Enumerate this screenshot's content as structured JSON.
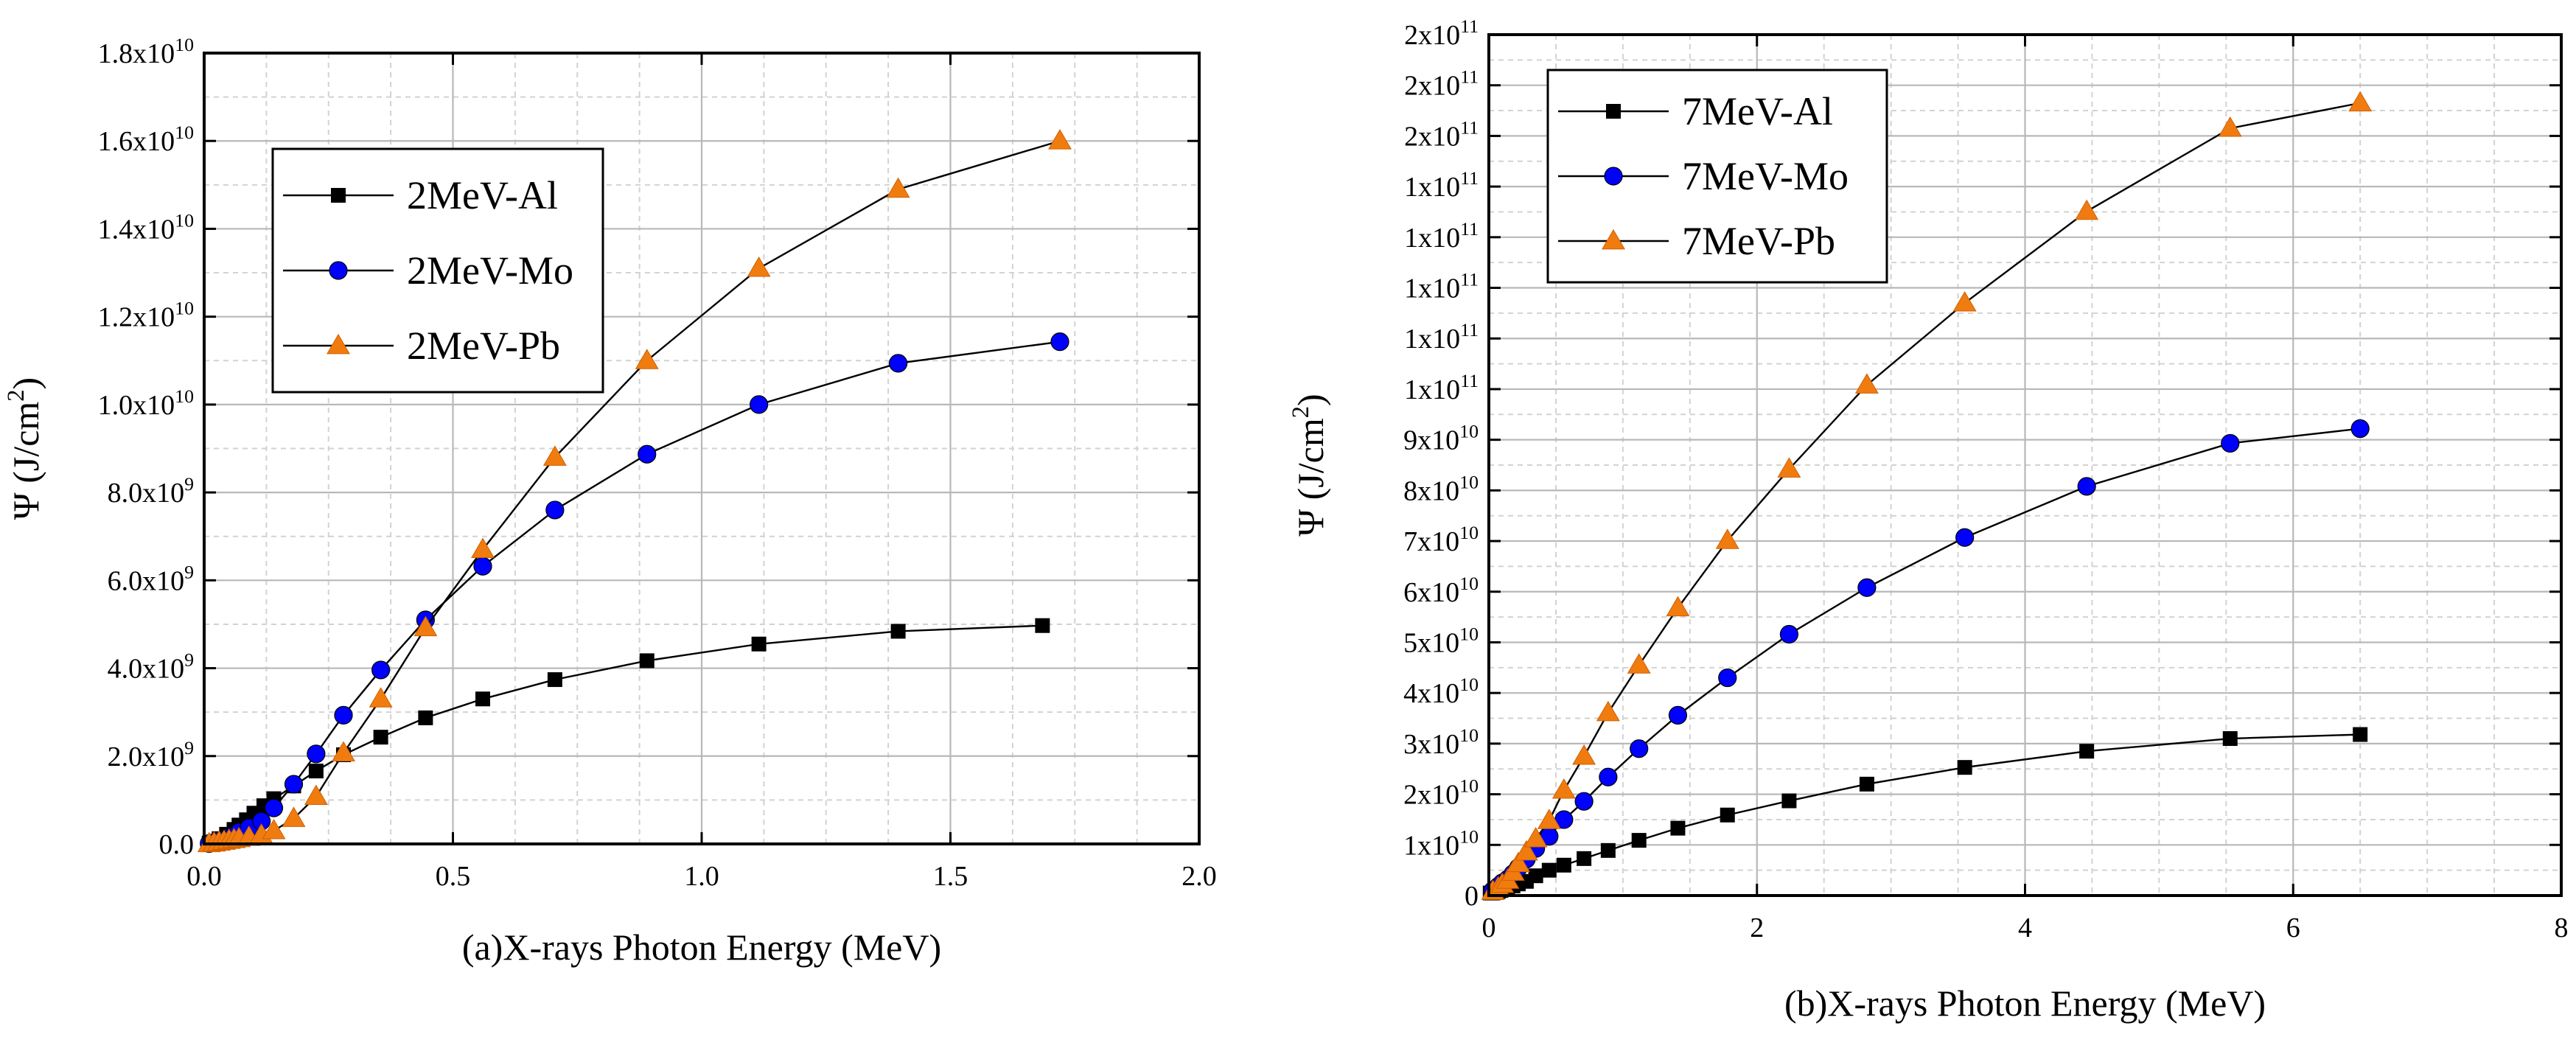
{
  "chart_data": [
    {
      "type": "line",
      "xlabel": "(a)X-rays Photon Energy (MeV)",
      "ylabel_symbol": "Ψ",
      "ylabel_text": " (J/cm",
      "ylabel_sup": "2",
      "ylabel_close": ")",
      "xlim": [
        0,
        2.0
      ],
      "ylim": [
        0,
        18000000000.0
      ],
      "x_ticks": [
        {
          "value": 0.0,
          "label": "0.0"
        },
        {
          "value": 0.5,
          "label": "0.5"
        },
        {
          "value": 1.0,
          "label": "1.0"
        },
        {
          "value": 1.5,
          "label": "1.5"
        },
        {
          "value": 2.0,
          "label": "2.0"
        }
      ],
      "y_ticks": [
        {
          "value": 0,
          "label": "0.0",
          "exp": ""
        },
        {
          "value": 2000000000.0,
          "label": "2.0x10",
          "exp": "9"
        },
        {
          "value": 4000000000.0,
          "label": "4.0x10",
          "exp": "9"
        },
        {
          "value": 6000000000.0,
          "label": "6.0x10",
          "exp": "9"
        },
        {
          "value": 8000000000.0,
          "label": "8.0x10",
          "exp": "9"
        },
        {
          "value": 10000000000.0,
          "label": "1.0x10",
          "exp": "10"
        },
        {
          "value": 12000000000.0,
          "label": "1.2x10",
          "exp": "10"
        },
        {
          "value": 14000000000.0,
          "label": "1.4x10",
          "exp": "10"
        },
        {
          "value": 16000000000.0,
          "label": "1.6x10",
          "exp": "10"
        },
        {
          "value": 18000000000.0,
          "label": "1.8x10",
          "exp": "10"
        }
      ],
      "legend_position": "upper-left",
      "grid": true,
      "series": [
        {
          "name": "2MeV-Al",
          "marker": "square",
          "color": "#000000",
          "x": [
            0.01,
            0.02,
            0.03,
            0.045,
            0.06,
            0.07,
            0.085,
            0.1,
            0.12,
            0.14,
            0.18,
            0.225,
            0.28,
            0.355,
            0.445,
            0.56,
            0.705,
            0.89,
            1.115,
            1.395,
            1.685
          ],
          "y": [
            20000000.0,
            50000000.0,
            120000000.0,
            220000000.0,
            330000000.0,
            430000000.0,
            550000000.0,
            700000000.0,
            870000000.0,
            1030000000.0,
            1320000000.0,
            1660000000.0,
            2030000000.0,
            2430000000.0,
            2870000000.0,
            3300000000.0,
            3740000000.0,
            4170000000.0,
            4550000000.0,
            4840000000.0,
            4970000000.0
          ]
        },
        {
          "name": "2MeV-Mo",
          "marker": "circle",
          "color": "#0000ff",
          "x": [
            0.01,
            0.02,
            0.03,
            0.04,
            0.05,
            0.06,
            0.07,
            0.09,
            0.115,
            0.14,
            0.18,
            0.225,
            0.28,
            0.355,
            0.445,
            0.56,
            0.705,
            0.89,
            1.115,
            1.395,
            1.72
          ],
          "y": [
            10000000.0,
            30000000.0,
            60000000.0,
            100000000.0,
            150000000.0,
            200000000.0,
            270000000.0,
            370000000.0,
            520000000.0,
            820000000.0,
            1360000000.0,
            2050000000.0,
            2930000000.0,
            3960000000.0,
            5100000000.0,
            6320000000.0,
            7600000000.0,
            8870000000.0,
            10000000000.0,
            10940000000.0,
            11430000000.0
          ]
        },
        {
          "name": "2MeV-Pb",
          "marker": "triangle",
          "color": "#f07c10",
          "x": [
            0.01,
            0.02,
            0.03,
            0.04,
            0.05,
            0.06,
            0.07,
            0.09,
            0.115,
            0.14,
            0.18,
            0.225,
            0.28,
            0.355,
            0.445,
            0.56,
            0.705,
            0.89,
            1.115,
            1.395,
            1.72
          ],
          "y": [
            5000000.0,
            20000000.0,
            40000000.0,
            60000000.0,
            80000000.0,
            100000000.0,
            120000000.0,
            150000000.0,
            200000000.0,
            300000000.0,
            580000000.0,
            1080000000.0,
            2070000000.0,
            3300000000.0,
            4920000000.0,
            6700000000.0,
            8800000000.0,
            11000000000.0,
            13100000000.0,
            14900000000.0,
            16000000000.0
          ]
        }
      ]
    },
    {
      "type": "line",
      "xlabel": "(b)X-rays Photon Energy (MeV)",
      "ylabel_symbol": "Ψ",
      "ylabel_text": " (J/cm",
      "ylabel_sup": "2",
      "ylabel_close": ")",
      "xlim": [
        0,
        8
      ],
      "ylim": [
        0,
        170000000000.0
      ],
      "x_ticks": [
        {
          "value": 0,
          "label": "0"
        },
        {
          "value": 2,
          "label": "2"
        },
        {
          "value": 4,
          "label": "4"
        },
        {
          "value": 6,
          "label": "6"
        },
        {
          "value": 8,
          "label": "8"
        }
      ],
      "y_ticks": [
        {
          "value": 0,
          "label": "0",
          "exp": ""
        },
        {
          "value": 10000000000.0,
          "label": "1x10",
          "exp": "10"
        },
        {
          "value": 20000000000.0,
          "label": "2x10",
          "exp": "10"
        },
        {
          "value": 30000000000.0,
          "label": "3x10",
          "exp": "10"
        },
        {
          "value": 40000000000.0,
          "label": "4x10",
          "exp": "10"
        },
        {
          "value": 50000000000.0,
          "label": "5x10",
          "exp": "10"
        },
        {
          "value": 60000000000.0,
          "label": "6x10",
          "exp": "10"
        },
        {
          "value": 70000000000.0,
          "label": "7x10",
          "exp": "10"
        },
        {
          "value": 80000000000.0,
          "label": "8x10",
          "exp": "10"
        },
        {
          "value": 90000000000.0,
          "label": "9x10",
          "exp": "10"
        },
        {
          "value": 100000000000.0,
          "label": "1x10",
          "exp": "11"
        },
        {
          "value": 110000000000.0,
          "label": "1x10",
          "exp": "11"
        },
        {
          "value": 120000000000.0,
          "label": "1x10",
          "exp": "11"
        },
        {
          "value": 130000000000.0,
          "label": "1x10",
          "exp": "11"
        },
        {
          "value": 140000000000.0,
          "label": "1x10",
          "exp": "11"
        },
        {
          "value": 150000000000.0,
          "label": "2x10",
          "exp": "11"
        },
        {
          "value": 160000000000.0,
          "label": "2x10",
          "exp": "11"
        },
        {
          "value": 170000000000.0,
          "label": "2x10",
          "exp": "11"
        }
      ],
      "legend_position": "upper-left",
      "grid": true,
      "series": [
        {
          "name": "7MeV-Al",
          "marker": "square",
          "color": "#000000",
          "x": [
            0.01,
            0.03,
            0.05,
            0.07,
            0.09,
            0.11,
            0.14,
            0.18,
            0.22,
            0.28,
            0.35,
            0.45,
            0.56,
            0.71,
            0.89,
            1.12,
            1.41,
            1.78,
            2.24,
            2.82,
            3.55,
            4.46,
            5.53,
            6.5
          ],
          "y": [
            500000000.0,
            500000000.0,
            600000000.0,
            800000000.0,
            1000000000.0,
            1200000000.0,
            1500000000.0,
            1900000000.0,
            2300000000.0,
            2800000000.0,
            3900000000.0,
            5000000000.0,
            6000000000.0,
            7300000000.0,
            8900000000.0,
            10900000000.0,
            13300000000.0,
            15900000000.0,
            18700000000.0,
            22000000000.0,
            25300000000.0,
            28500000000.0,
            31000000000.0,
            31800000000.0
          ]
        },
        {
          "name": "7MeV-Mo",
          "marker": "circle",
          "color": "#0000ff",
          "x": [
            0.03,
            0.07,
            0.1,
            0.14,
            0.18,
            0.22,
            0.28,
            0.35,
            0.45,
            0.56,
            0.71,
            0.89,
            1.12,
            1.41,
            1.78,
            2.24,
            2.82,
            3.55,
            4.46,
            5.53,
            6.5
          ],
          "y": [
            1000000000.0,
            1800000000.0,
            2500000000.0,
            3200000000.0,
            4300000000.0,
            5500000000.0,
            7200000000.0,
            9300000000.0,
            11700000000.0,
            15000000000.0,
            18600000000.0,
            23400000000.0,
            29000000000.0,
            35600000000.0,
            43000000000.0,
            51600000000.0,
            60800000000.0,
            70700000000.0,
            80800000000.0,
            89300000000.0,
            92200000000.0
          ]
        },
        {
          "name": "7MeV-Pb",
          "marker": "triangle",
          "color": "#f07c10",
          "x": [
            0.03,
            0.07,
            0.1,
            0.14,
            0.18,
            0.22,
            0.28,
            0.35,
            0.45,
            0.56,
            0.71,
            0.89,
            1.12,
            1.41,
            1.78,
            2.24,
            2.82,
            3.55,
            4.46,
            5.53,
            6.5
          ],
          "y": [
            800000000.0,
            1500000000.0,
            2200000000.0,
            3000000000.0,
            4600000000.0,
            6300000000.0,
            8600000000.0,
            11200000000.0,
            14800000000.0,
            20800000000.0,
            27500000000.0,
            36100000000.0,
            45500000000.0,
            56800000000.0,
            70100000000.0,
            84200000000.0,
            100800000000.0,
            117000000000.0,
            135100000000.0,
            151500000000.0,
            156500000000.0
          ]
        }
      ]
    }
  ]
}
